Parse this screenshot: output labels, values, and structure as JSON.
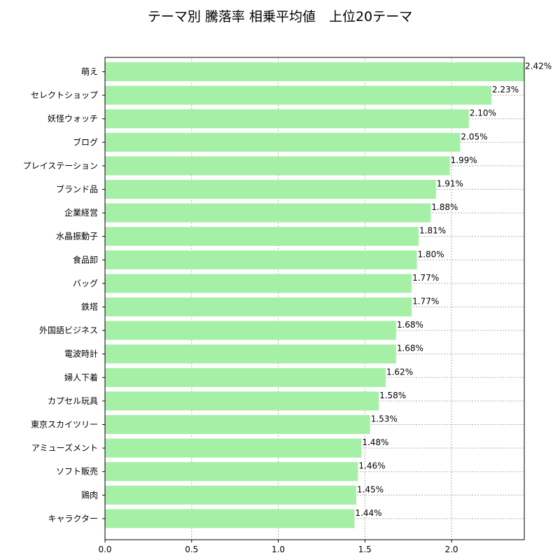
{
  "chart_data": {
    "type": "bar",
    "orientation": "horizontal",
    "title": "テーマ別 騰落率 相乗平均値　上位20テーマ",
    "xlabel": "",
    "ylabel": "",
    "xlim": [
      0,
      2.42
    ],
    "xticks": [
      "0.0",
      "0.5",
      "1.0",
      "1.5",
      "2.0"
    ],
    "grid": true,
    "bar_color": "#a6efa6",
    "categories": [
      "萌え",
      "セレクトショップ",
      "妖怪ウォッチ",
      "ブログ",
      "プレイステーション",
      "ブランド品",
      "企業経営",
      "水晶振動子",
      "食品卸",
      "バッグ",
      "鉄塔",
      "外国語ビジネス",
      "電波時計",
      "婦人下着",
      "カプセル玩具",
      "東京スカイツリー",
      "アミューズメント",
      "ソフト販売",
      "鶏肉",
      "キャラクター"
    ],
    "values": [
      2.42,
      2.23,
      2.1,
      2.05,
      1.99,
      1.91,
      1.88,
      1.81,
      1.8,
      1.77,
      1.77,
      1.68,
      1.68,
      1.62,
      1.58,
      1.53,
      1.48,
      1.46,
      1.45,
      1.44
    ],
    "value_labels": [
      "2.42%",
      "2.23%",
      "2.10%",
      "2.05%",
      "1.99%",
      "1.91%",
      "1.88%",
      "1.81%",
      "1.80%",
      "1.77%",
      "1.77%",
      "1.68%",
      "1.68%",
      "1.62%",
      "1.58%",
      "1.53%",
      "1.48%",
      "1.46%",
      "1.45%",
      "1.44%"
    ]
  }
}
